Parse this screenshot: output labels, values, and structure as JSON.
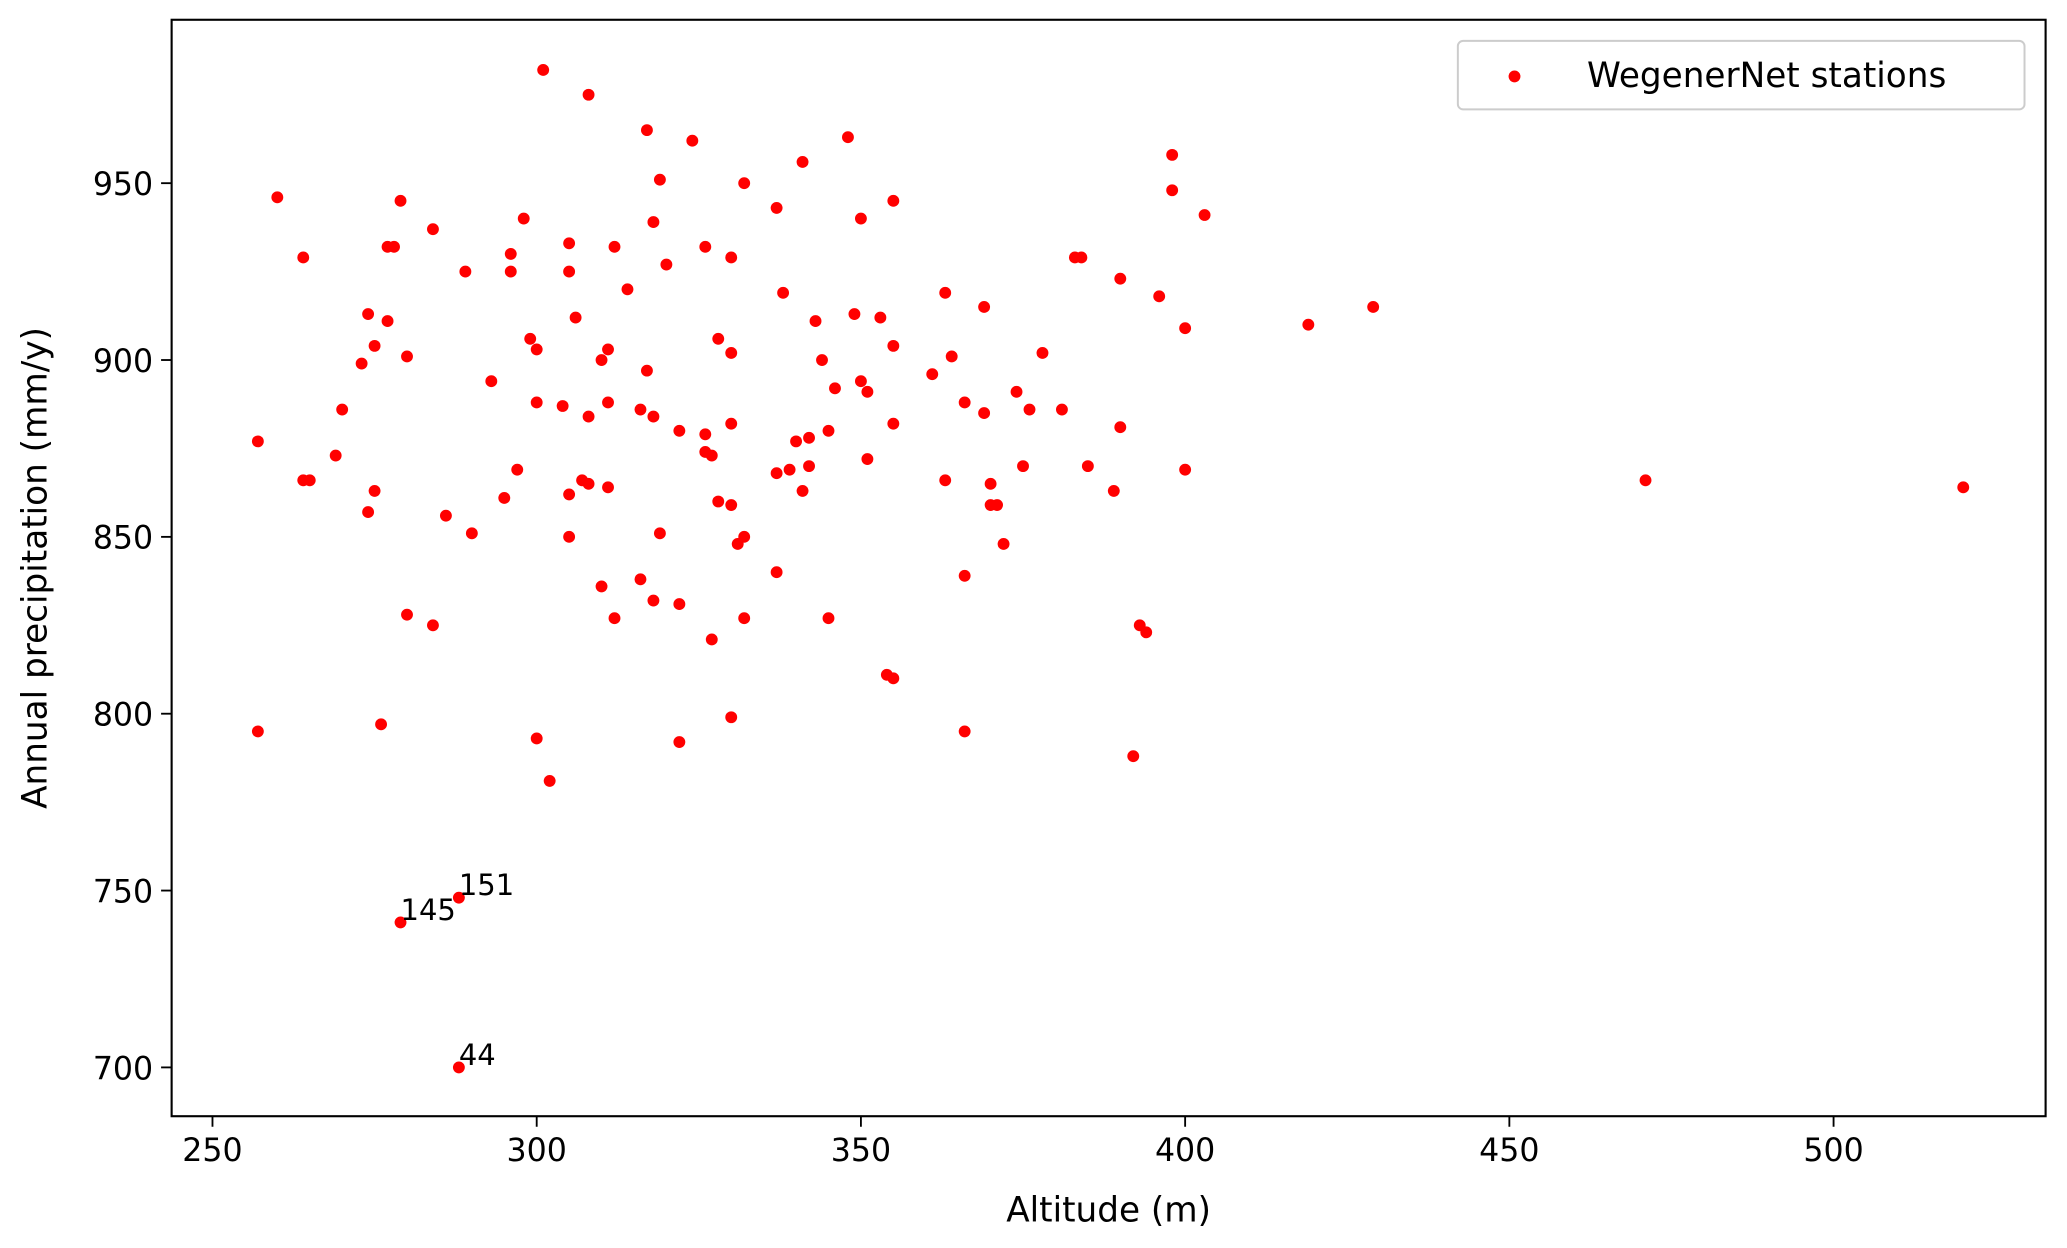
{
  "chart_data": {
    "type": "scatter",
    "title": "",
    "xlabel": "Altitude (m)",
    "ylabel": "Annual precipitation (mm/y)",
    "xlim": [
      243.7,
      532.7
    ],
    "ylim": [
      686.2,
      996.2
    ],
    "xticks": [
      250,
      300,
      350,
      400,
      450,
      500
    ],
    "yticks": [
      700,
      750,
      800,
      850,
      900,
      950
    ],
    "grid": false,
    "legend": {
      "placement": "top-right",
      "entries": [
        "WegenerNet stations"
      ]
    },
    "series": [
      {
        "name": "WegenerNet stations",
        "color": "#ff0000",
        "points": [
          [
            257,
            877
          ],
          [
            260,
            946
          ],
          [
            264,
            929
          ],
          [
            257,
            795
          ],
          [
            264,
            866
          ],
          [
            265,
            866
          ],
          [
            269,
            873
          ],
          [
            270,
            886
          ],
          [
            273,
            899
          ],
          [
            274,
            913
          ],
          [
            275,
            904
          ],
          [
            277,
            911
          ],
          [
            274,
            857
          ],
          [
            275,
            863
          ],
          [
            277,
            932
          ],
          [
            278,
            932
          ],
          [
            279,
            945
          ],
          [
            280,
            901
          ],
          [
            280,
            828
          ],
          [
            276,
            797
          ],
          [
            284,
            937
          ],
          [
            284,
            825
          ],
          [
            286,
            856
          ],
          [
            289,
            925
          ],
          [
            290,
            851
          ],
          [
            293,
            894
          ],
          [
            295,
            861
          ],
          [
            296,
            930
          ],
          [
            296,
            925
          ],
          [
            297,
            869
          ],
          [
            298,
            940
          ],
          [
            299,
            906
          ],
          [
            300,
            903
          ],
          [
            300,
            888
          ],
          [
            300,
            793
          ],
          [
            301,
            982
          ],
          [
            302,
            781
          ],
          [
            304,
            887
          ],
          [
            305,
            933
          ],
          [
            305,
            925
          ],
          [
            305,
            862
          ],
          [
            305,
            850
          ],
          [
            306,
            912
          ],
          [
            307,
            866
          ],
          [
            308,
            865
          ],
          [
            308,
            884
          ],
          [
            308,
            975
          ],
          [
            310,
            900
          ],
          [
            311,
            903
          ],
          [
            311,
            888
          ],
          [
            311,
            864
          ],
          [
            310,
            836
          ],
          [
            312,
            932
          ],
          [
            312,
            827
          ],
          [
            314,
            920
          ],
          [
            316,
            886
          ],
          [
            317,
            897
          ],
          [
            316,
            838
          ],
          [
            317,
            965
          ],
          [
            318,
            939
          ],
          [
            318,
            884
          ],
          [
            318,
            832
          ],
          [
            319,
            951
          ],
          [
            319,
            851
          ],
          [
            320,
            927
          ],
          [
            322,
            880
          ],
          [
            322,
            831
          ],
          [
            322,
            792
          ],
          [
            324,
            962
          ],
          [
            326,
            932
          ],
          [
            326,
            879
          ],
          [
            326,
            874
          ],
          [
            327,
            873
          ],
          [
            327,
            821
          ],
          [
            328,
            906
          ],
          [
            328,
            860
          ],
          [
            330,
            929
          ],
          [
            330,
            902
          ],
          [
            330,
            882
          ],
          [
            330,
            859
          ],
          [
            331,
            848
          ],
          [
            332,
            850
          ],
          [
            330,
            799
          ],
          [
            332,
            950
          ],
          [
            332,
            827
          ],
          [
            337,
            943
          ],
          [
            337,
            868
          ],
          [
            337,
            840
          ],
          [
            338,
            919
          ],
          [
            339,
            869
          ],
          [
            340,
            877
          ],
          [
            342,
            878
          ],
          [
            341,
            956
          ],
          [
            341,
            863
          ],
          [
            342,
            870
          ],
          [
            343,
            911
          ],
          [
            344,
            900
          ],
          [
            345,
            880
          ],
          [
            345,
            827
          ],
          [
            346,
            892
          ],
          [
            348,
            963
          ],
          [
            349,
            913
          ],
          [
            350,
            940
          ],
          [
            350,
            894
          ],
          [
            351,
            891
          ],
          [
            351,
            872
          ],
          [
            353,
            912
          ],
          [
            354,
            811
          ],
          [
            355,
            810
          ],
          [
            355,
            945
          ],
          [
            355,
            904
          ],
          [
            355,
            882
          ],
          [
            361,
            896
          ],
          [
            363,
            919
          ],
          [
            363,
            866
          ],
          [
            364,
            901
          ],
          [
            366,
            888
          ],
          [
            366,
            839
          ],
          [
            366,
            795
          ],
          [
            369,
            915
          ],
          [
            369,
            885
          ],
          [
            370,
            865
          ],
          [
            370,
            859
          ],
          [
            371,
            859
          ],
          [
            372,
            848
          ],
          [
            374,
            891
          ],
          [
            375,
            870
          ],
          [
            376,
            886
          ],
          [
            378,
            902
          ],
          [
            381,
            886
          ],
          [
            383,
            929
          ],
          [
            384,
            929
          ],
          [
            385,
            870
          ],
          [
            389,
            863
          ],
          [
            390,
            923
          ],
          [
            390,
            881
          ],
          [
            392,
            788
          ],
          [
            393,
            825
          ],
          [
            394,
            823
          ],
          [
            396,
            918
          ],
          [
            398,
            958
          ],
          [
            398,
            948
          ],
          [
            400,
            909
          ],
          [
            400,
            869
          ],
          [
            403,
            941
          ],
          [
            419,
            910
          ],
          [
            429,
            915
          ],
          [
            471,
            866
          ],
          [
            520,
            864
          ],
          [
            279,
            741
          ],
          [
            288,
            748
          ],
          [
            288,
            700
          ]
        ]
      }
    ],
    "annotations": [
      {
        "text": "145",
        "x": 279,
        "y": 741
      },
      {
        "text": "151",
        "x": 288,
        "y": 748
      },
      {
        "text": "44",
        "x": 288,
        "y": 700
      }
    ]
  }
}
